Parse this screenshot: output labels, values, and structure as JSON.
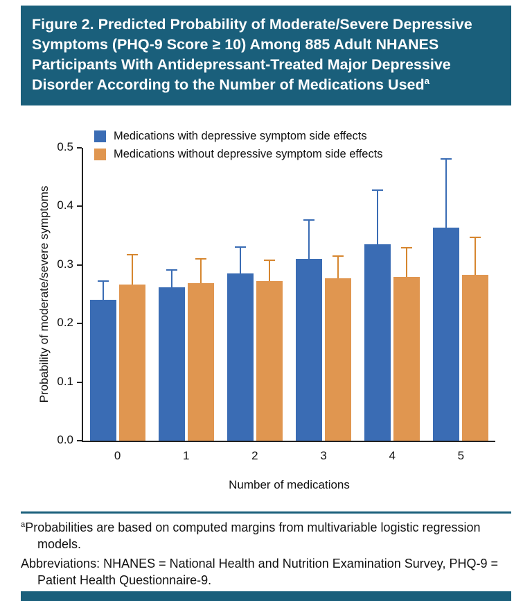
{
  "header": {
    "title": "Figure 2. Predicted Probability of Moderate/Severe Depressive Symptoms (PHQ-9 Score ≥ 10) Among 885 Adult NHANES Participants With Antidepressant-Treated Major Depressive Disorder According to the Number of Medications Used",
    "title_superscript": "a"
  },
  "chart_data": {
    "type": "bar",
    "categories": [
      "0",
      "1",
      "2",
      "3",
      "4",
      "5"
    ],
    "series": [
      {
        "name": "Medications with depressive symptom side effects",
        "color": "#3A6CB4",
        "error_color": "#3A6CB4",
        "values": [
          0.241,
          0.262,
          0.286,
          0.31,
          0.335,
          0.364
        ],
        "error_upper": [
          0.272,
          0.292,
          0.33,
          0.377,
          0.428,
          0.481
        ]
      },
      {
        "name": "Medications without depressive symptom side effects",
        "color": "#E09650",
        "error_color": "#D6862F",
        "values": [
          0.267,
          0.269,
          0.273,
          0.277,
          0.28,
          0.283
        ],
        "error_upper": [
          0.318,
          0.31,
          0.308,
          0.315,
          0.329,
          0.347
        ]
      }
    ],
    "xlabel": "Number of medications",
    "ylabel": "Probability of moderate/severe symptoms",
    "ylim": [
      0,
      0.5
    ],
    "yticks": [
      0,
      0.1,
      0.2,
      0.3,
      0.4,
      0.5
    ],
    "ytick_labels": [
      "0.0",
      "0.1",
      "0.2",
      "0.3",
      "0.4",
      "0.5"
    ],
    "legend_position": "top-left",
    "grid": false,
    "error_bars": "upper whisker with cap"
  },
  "footnotes": [
    {
      "sup": "a",
      "text": "Probabilities are based on computed margins from multivariable logistic regression models."
    },
    {
      "sup": "",
      "text": "Abbreviations: NHANES = National Health and Nutrition Examination Survey, PHQ-9 = Patient Health Questionnaire-9."
    }
  ],
  "colors": {
    "accent_teal": "#1A5F7B",
    "bar_blue": "#3A6CB4",
    "bar_orange": "#E09650",
    "axis": "#222222",
    "background": "#FFFFFF",
    "title_text": "#FFFFFF"
  }
}
